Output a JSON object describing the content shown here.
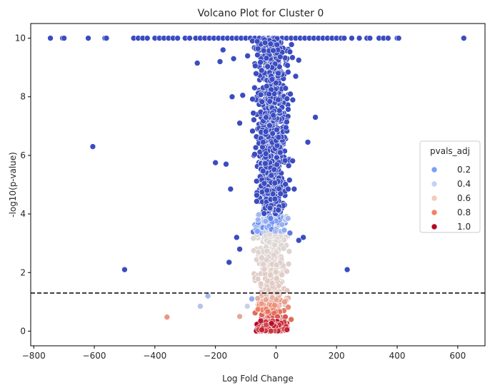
{
  "chart_data": {
    "type": "scatter",
    "title": "Volcano Plot for Cluster 0",
    "xlabel": "Log Fold Change",
    "ylabel": "-log10(p-value)",
    "xlim": [
      -810,
      690
    ],
    "ylim": [
      -0.5,
      10.5
    ],
    "x_ticks": [
      -800,
      -600,
      -400,
      -200,
      0,
      200,
      400,
      600
    ],
    "y_ticks": [
      0,
      2,
      4,
      6,
      8,
      10
    ],
    "x_tick_labels": [
      "−800",
      "−600",
      "−400",
      "−200",
      "0",
      "200",
      "400",
      "600"
    ],
    "y_tick_labels": [
      "0",
      "2",
      "4",
      "6",
      "8",
      "10"
    ],
    "threshold_y": 1.301,
    "threshold_style": "dashed black horizontal line",
    "grid": false,
    "legend": {
      "title": "pvals_adj",
      "placement": "center-right",
      "entries": [
        {
          "label": "0.2",
          "color": "#7b9ff9"
        },
        {
          "label": "0.4",
          "color": "#c0d4f5"
        },
        {
          "label": "0.6",
          "color": "#f2cbb7"
        },
        {
          "label": "0.8",
          "color": "#ee8468"
        },
        {
          "label": "1.0",
          "color": "#b40426"
        }
      ]
    },
    "colormap": "coolwarm",
    "points": [
      {
        "x": -745,
        "y": 10,
        "p": 0
      },
      {
        "x": -705,
        "y": 10,
        "p": 0
      },
      {
        "x": -700,
        "y": 10,
        "p": 0
      },
      {
        "x": -620,
        "y": 10,
        "p": 0
      },
      {
        "x": -565,
        "y": 10,
        "p": 0
      },
      {
        "x": -560,
        "y": 10,
        "p": 0
      },
      {
        "x": -470,
        "y": 10,
        "p": 0
      },
      {
        "x": -455,
        "y": 10,
        "p": 0
      },
      {
        "x": -440,
        "y": 10,
        "p": 0
      },
      {
        "x": -425,
        "y": 10,
        "p": 0
      },
      {
        "x": -400,
        "y": 10,
        "p": 0
      },
      {
        "x": -385,
        "y": 10,
        "p": 0
      },
      {
        "x": -370,
        "y": 10,
        "p": 0
      },
      {
        "x": -355,
        "y": 10,
        "p": 0
      },
      {
        "x": -340,
        "y": 10,
        "p": 0
      },
      {
        "x": -325,
        "y": 10,
        "p": 0
      },
      {
        "x": -300,
        "y": 10,
        "p": 0
      },
      {
        "x": -285,
        "y": 10,
        "p": 0
      },
      {
        "x": -265,
        "y": 10,
        "p": 0
      },
      {
        "x": -250,
        "y": 10,
        "p": 0
      },
      {
        "x": -235,
        "y": 10,
        "p": 0
      },
      {
        "x": -220,
        "y": 10,
        "p": 0
      },
      {
        "x": -205,
        "y": 10,
        "p": 0
      },
      {
        "x": -190,
        "y": 10,
        "p": 0
      },
      {
        "x": -175,
        "y": 10,
        "p": 0
      },
      {
        "x": -160,
        "y": 10,
        "p": 0
      },
      {
        "x": -145,
        "y": 10,
        "p": 0
      },
      {
        "x": -130,
        "y": 10,
        "p": 0
      },
      {
        "x": -115,
        "y": 10,
        "p": 0
      },
      {
        "x": -100,
        "y": 10,
        "p": 0
      },
      {
        "x": -85,
        "y": 10,
        "p": 0
      },
      {
        "x": -70,
        "y": 10,
        "p": 0
      },
      {
        "x": -55,
        "y": 10,
        "p": 0
      },
      {
        "x": -40,
        "y": 10,
        "p": 0
      },
      {
        "x": -25,
        "y": 10,
        "p": 0
      },
      {
        "x": -10,
        "y": 10,
        "p": 0
      },
      {
        "x": 5,
        "y": 10,
        "p": 0
      },
      {
        "x": 20,
        "y": 10,
        "p": 0
      },
      {
        "x": 35,
        "y": 10,
        "p": 0
      },
      {
        "x": 50,
        "y": 10,
        "p": 0
      },
      {
        "x": 65,
        "y": 10,
        "p": 0
      },
      {
        "x": 80,
        "y": 10,
        "p": 0
      },
      {
        "x": 95,
        "y": 10,
        "p": 0
      },
      {
        "x": 110,
        "y": 10,
        "p": 0
      },
      {
        "x": 125,
        "y": 10,
        "p": 0
      },
      {
        "x": 140,
        "y": 10,
        "p": 0
      },
      {
        "x": 155,
        "y": 10,
        "p": 0
      },
      {
        "x": 170,
        "y": 10,
        "p": 0
      },
      {
        "x": 185,
        "y": 10,
        "p": 0
      },
      {
        "x": 200,
        "y": 10,
        "p": 0
      },
      {
        "x": 215,
        "y": 10,
        "p": 0
      },
      {
        "x": 225,
        "y": 10,
        "p": 0
      },
      {
        "x": 250,
        "y": 10,
        "p": 0
      },
      {
        "x": 275,
        "y": 10,
        "p": 0
      },
      {
        "x": 300,
        "y": 10,
        "p": 0
      },
      {
        "x": 310,
        "y": 10,
        "p": 0
      },
      {
        "x": 340,
        "y": 10,
        "p": 0
      },
      {
        "x": 355,
        "y": 10,
        "p": 0
      },
      {
        "x": 370,
        "y": 10,
        "p": 0
      },
      {
        "x": 400,
        "y": 10,
        "p": 0
      },
      {
        "x": 405,
        "y": 10,
        "p": 0
      },
      {
        "x": 620,
        "y": 10,
        "p": 0
      },
      {
        "x": -605,
        "y": 6.3,
        "p": 0
      },
      {
        "x": -500,
        "y": 2.1,
        "p": 0
      },
      {
        "x": 235,
        "y": 2.1,
        "p": 0
      },
      {
        "x": -260,
        "y": 9.15,
        "p": 0
      },
      {
        "x": -200,
        "y": 5.75,
        "p": 0
      },
      {
        "x": -165,
        "y": 5.7,
        "p": 0
      },
      {
        "x": -150,
        "y": 4.85,
        "p": 0
      },
      {
        "x": 105,
        "y": 6.45,
        "p": 0
      },
      {
        "x": 130,
        "y": 7.3,
        "p": 0
      },
      {
        "x": 60,
        "y": 4.85,
        "p": 0
      },
      {
        "x": 90,
        "y": 3.2,
        "p": 0
      },
      {
        "x": 75,
        "y": 3.1,
        "p": 0
      },
      {
        "x": 75,
        "y": 9.25,
        "p": 0
      },
      {
        "x": 65,
        "y": 8.7,
        "p": 0
      },
      {
        "x": -175,
        "y": 9.6,
        "p": 0
      },
      {
        "x": -140,
        "y": 9.3,
        "p": 0
      },
      {
        "x": -185,
        "y": 9.2,
        "p": 0
      },
      {
        "x": -145,
        "y": 8.0,
        "p": 0
      },
      {
        "x": -110,
        "y": 8.05,
        "p": 0
      },
      {
        "x": -120,
        "y": 7.1,
        "p": 0
      },
      {
        "x": -155,
        "y": 2.35,
        "p": 0
      },
      {
        "x": -130,
        "y": 3.2,
        "p": 0
      },
      {
        "x": -120,
        "y": 2.8,
        "p": 0
      },
      {
        "x": -225,
        "y": 1.2,
        "p": 0.35
      },
      {
        "x": -250,
        "y": 0.85,
        "p": 0.4
      },
      {
        "x": -360,
        "y": 0.48,
        "p": 0.7
      },
      {
        "x": -120,
        "y": 0.5,
        "p": 0.65
      },
      {
        "x": 50,
        "y": 0.4,
        "p": 0.8
      },
      {
        "x": -80,
        "y": 1.1,
        "p": 0.3
      },
      {
        "x": -60,
        "y": 0.9,
        "p": 0.4
      },
      {
        "x": 10,
        "y": 1.15,
        "p": 0.3
      },
      {
        "x": -95,
        "y": 0.85,
        "p": 0.45
      },
      {
        "x": 30,
        "y": 0.9,
        "p": 0.45
      },
      {
        "x": -40,
        "y": 0.7,
        "p": 0.55
      },
      {
        "x": -30,
        "y": 0.4,
        "p": 0.7
      },
      {
        "x": 20,
        "y": 0.3,
        "p": 0.8
      },
      {
        "x": -45,
        "y": 0.15,
        "p": 0.95
      },
      {
        "x": -20,
        "y": 0.1,
        "p": 1.0
      },
      {
        "x": 0,
        "y": 0.05,
        "p": 1.0
      },
      {
        "x": 15,
        "y": 0.12,
        "p": 0.95
      },
      {
        "x": -60,
        "y": 0.2,
        "p": 0.9
      },
      {
        "x": 35,
        "y": 0.18,
        "p": 0.9
      },
      {
        "x": -10,
        "y": 0.25,
        "p": 0.85
      },
      {
        "x": -35,
        "y": 1.5,
        "p": 0.2
      },
      {
        "x": 25,
        "y": 1.45,
        "p": 0.2
      },
      {
        "x": -5,
        "y": 1.35,
        "p": 0.25
      }
    ]
  }
}
